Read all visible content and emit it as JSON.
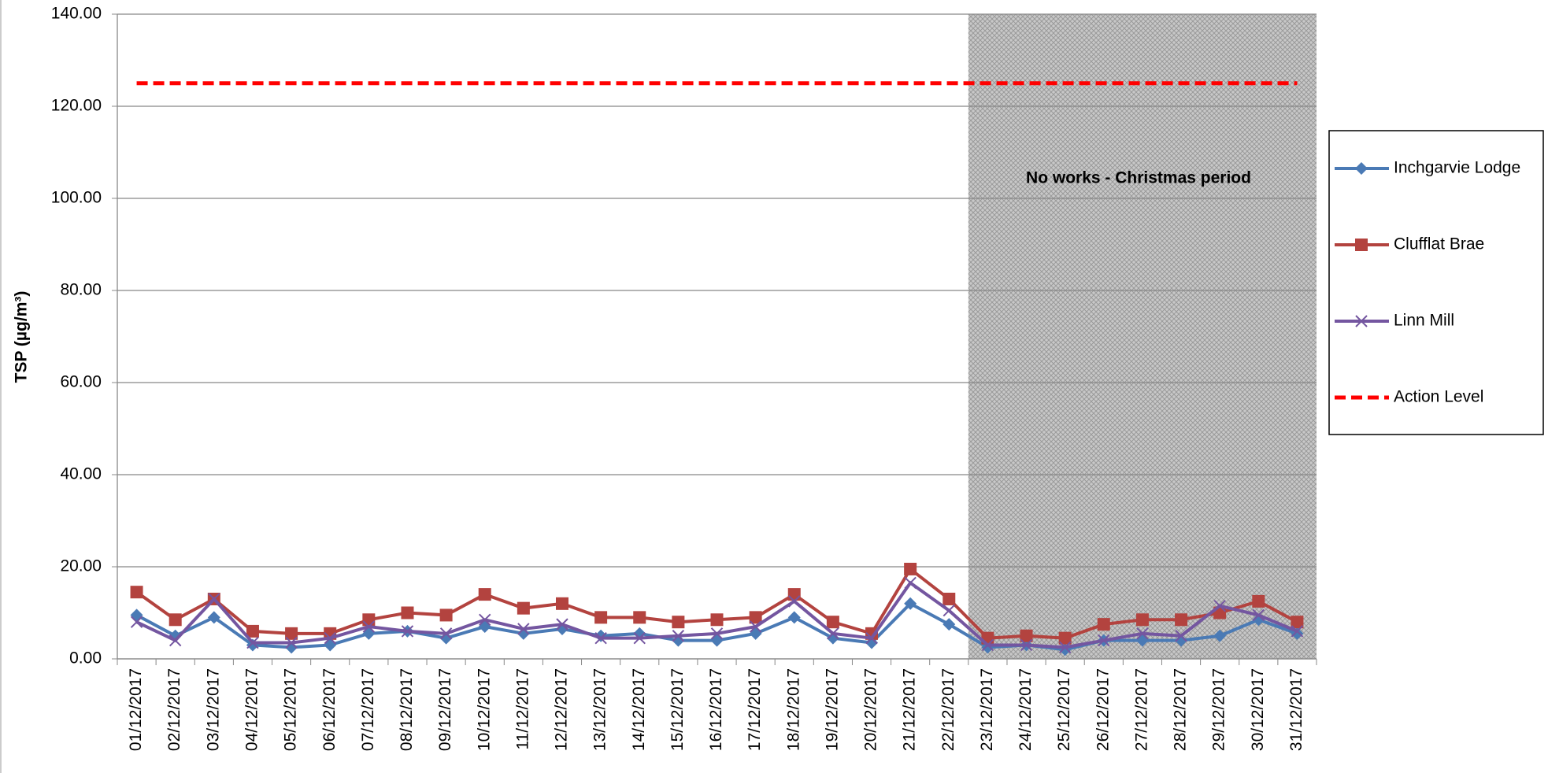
{
  "chart_data": {
    "type": "line",
    "y_label": "TSP (µg/m³)",
    "annotation": "No works  - Christmas  period",
    "categories": [
      "01/12/2017",
      "02/12/2017",
      "03/12/2017",
      "04/12/2017",
      "05/12/2017",
      "06/12/2017",
      "07/12/2017",
      "08/12/2017",
      "09/12/2017",
      "10/12/2017",
      "11/12/2017",
      "12/12/2017",
      "13/12/2017",
      "14/12/2017",
      "15/12/2017",
      "16/12/2017",
      "17/12/2017",
      "18/12/2017",
      "19/12/2017",
      "20/12/2017",
      "21/12/2017",
      "22/12/2017",
      "23/12/2017",
      "24/12/2017",
      "25/12/2017",
      "26/12/2017",
      "27/12/2017",
      "28/12/2017",
      "29/12/2017",
      "30/12/2017",
      "31/12/2017"
    ],
    "series": [
      {
        "name": "Inchgarvie Lodge",
        "color": "#4a7ab5",
        "marker": "diamond",
        "values": [
          9.5,
          5,
          9,
          3,
          2.5,
          3,
          5.5,
          6,
          4.5,
          7,
          5.5,
          6.5,
          5,
          5.5,
          4,
          4,
          5.5,
          9,
          4.5,
          3.5,
          12,
          7.5,
          2.5,
          3,
          2,
          4,
          4,
          4,
          5,
          8.5,
          5.5
        ]
      },
      {
        "name": "Clufflat Brae",
        "color": "#b3433f",
        "marker": "square",
        "values": [
          14.5,
          8.5,
          13,
          6,
          5.5,
          5.5,
          8.5,
          10,
          9.5,
          14,
          11,
          12,
          9,
          9,
          8,
          8.5,
          9,
          14,
          8,
          5.5,
          19.5,
          13,
          4.5,
          5,
          4.5,
          7.5,
          8.5,
          8.5,
          10,
          12.5,
          8
        ]
      },
      {
        "name": "Linn Mill",
        "color": "#7456a0",
        "marker": "x",
        "values": [
          8,
          4,
          13,
          3.5,
          3.5,
          4.5,
          7,
          6,
          5.5,
          8.5,
          6.5,
          7.5,
          4.5,
          4.5,
          5,
          5.5,
          7,
          12.5,
          5.5,
          4.5,
          16.5,
          10.5,
          3,
          3,
          2.5,
          4,
          5.5,
          5,
          11.5,
          9.5,
          6
        ]
      },
      {
        "name": "Action Level",
        "color": "#ff0000",
        "dashed": true,
        "values": [
          125,
          125,
          125,
          125,
          125,
          125,
          125,
          125,
          125,
          125,
          125,
          125,
          125,
          125,
          125,
          125,
          125,
          125,
          125,
          125,
          125,
          125,
          125,
          125,
          125,
          125,
          125,
          125,
          125,
          125,
          125
        ]
      }
    ],
    "ylim": [
      0,
      140
    ],
    "yticks": [
      {
        "value": 0,
        "label": "0.00"
      },
      {
        "value": 20,
        "label": "20.00"
      },
      {
        "value": 40,
        "label": "40.00"
      },
      {
        "value": 60,
        "label": "60.00"
      },
      {
        "value": 80,
        "label": "80.00"
      },
      {
        "value": 100,
        "label": "100.00"
      },
      {
        "value": 120,
        "label": "120.00"
      },
      {
        "value": 140,
        "label": "140.00"
      }
    ],
    "grid": true
  }
}
